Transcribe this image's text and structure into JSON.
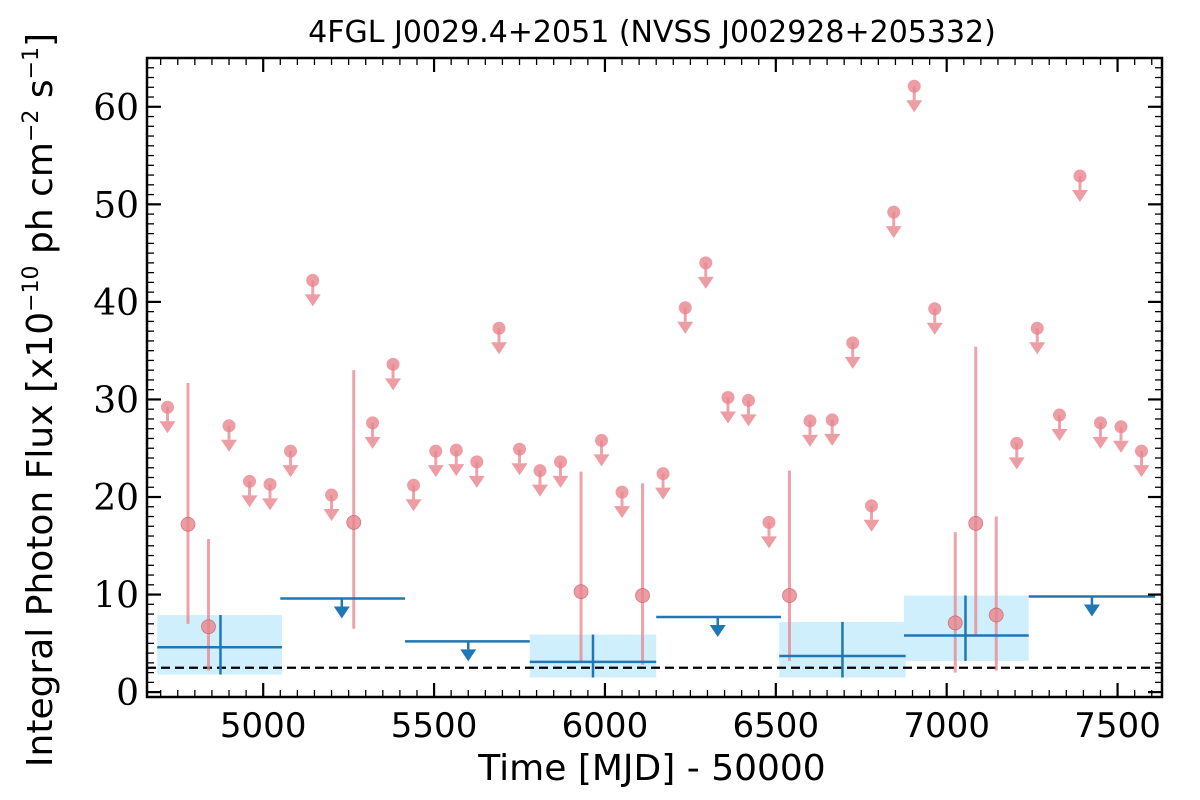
{
  "chart_data": {
    "type": "scatter",
    "title": "4FGL J0029.4+2051 (NVSS J002928+205332)",
    "xlabel": "Time [MJD] - 50000",
    "ylabel_main": "Integral Photon Flux [x10",
    "ylabel_exp1": "−10",
    "ylabel_mid": " ph cm",
    "ylabel_exp2": "−2",
    "ylabel_s": " s",
    "ylabel_exp3": "−1",
    "ylabel_end": "]",
    "xlim": [
      4660,
      7630
    ],
    "ylim": [
      -0.5,
      65
    ],
    "xticks": [
      5000,
      5500,
      6000,
      6500,
      7000,
      7500
    ],
    "yticks": [
      0,
      10,
      20,
      30,
      40,
      50,
      60
    ],
    "reference_line": 2.5,
    "colors": {
      "short": "#e8858d",
      "long": "#1f77b4",
      "band": "#cdeefc"
    },
    "short_detections": [
      {
        "x": 4780,
        "y": 17.2,
        "lo": 7.0,
        "hi": 31.7
      },
      {
        "x": 4840,
        "y": 6.7,
        "lo": 2.2,
        "hi": 15.7
      },
      {
        "x": 5265,
        "y": 17.4,
        "lo": 6.5,
        "hi": 33.0
      },
      {
        "x": 5930,
        "y": 10.3,
        "lo": 3.0,
        "hi": 22.6
      },
      {
        "x": 6110,
        "y": 9.9,
        "lo": 2.8,
        "hi": 21.4
      },
      {
        "x": 6540,
        "y": 9.9,
        "lo": 3.2,
        "hi": 22.7
      },
      {
        "x": 7025,
        "y": 7.1,
        "lo": 2.0,
        "hi": 16.4
      },
      {
        "x": 7085,
        "y": 17.3,
        "lo": 5.8,
        "hi": 35.4
      },
      {
        "x": 7145,
        "y": 7.9,
        "lo": 2.2,
        "hi": 18.0
      }
    ],
    "short_upper_limits": [
      {
        "x": 4720,
        "y": 29.2
      },
      {
        "x": 4900,
        "y": 27.3
      },
      {
        "x": 4960,
        "y": 21.6
      },
      {
        "x": 5020,
        "y": 21.3
      },
      {
        "x": 5080,
        "y": 24.7
      },
      {
        "x": 5145,
        "y": 42.2
      },
      {
        "x": 5200,
        "y": 20.2
      },
      {
        "x": 5320,
        "y": 27.6
      },
      {
        "x": 5380,
        "y": 33.6
      },
      {
        "x": 5440,
        "y": 21.2
      },
      {
        "x": 5505,
        "y": 24.7
      },
      {
        "x": 5565,
        "y": 24.8
      },
      {
        "x": 5625,
        "y": 23.6
      },
      {
        "x": 5690,
        "y": 37.3
      },
      {
        "x": 5750,
        "y": 24.9
      },
      {
        "x": 5810,
        "y": 22.7
      },
      {
        "x": 5870,
        "y": 23.6
      },
      {
        "x": 5990,
        "y": 25.8
      },
      {
        "x": 6050,
        "y": 20.5
      },
      {
        "x": 6170,
        "y": 22.4
      },
      {
        "x": 6235,
        "y": 39.4
      },
      {
        "x": 6295,
        "y": 44.0
      },
      {
        "x": 6360,
        "y": 30.2
      },
      {
        "x": 6420,
        "y": 29.9
      },
      {
        "x": 6480,
        "y": 17.4
      },
      {
        "x": 6600,
        "y": 27.8
      },
      {
        "x": 6665,
        "y": 27.9
      },
      {
        "x": 6725,
        "y": 35.8
      },
      {
        "x": 6780,
        "y": 19.1
      },
      {
        "x": 6845,
        "y": 49.2
      },
      {
        "x": 6905,
        "y": 62.1
      },
      {
        "x": 6965,
        "y": 39.3
      },
      {
        "x": 7205,
        "y": 25.5
      },
      {
        "x": 7265,
        "y": 37.3
      },
      {
        "x": 7330,
        "y": 28.4
      },
      {
        "x": 7390,
        "y": 52.9
      },
      {
        "x": 7450,
        "y": 27.6
      },
      {
        "x": 7510,
        "y": 27.2
      },
      {
        "x": 7570,
        "y": 24.7
      }
    ],
    "long_detections": [
      {
        "x0": 4690,
        "x1": 5055,
        "xc": 4875,
        "y": 4.6,
        "lo": 1.8,
        "hi": 7.9
      },
      {
        "x0": 5780,
        "x1": 6150,
        "xc": 5965,
        "y": 3.1,
        "lo": 1.5,
        "hi": 5.9
      },
      {
        "x0": 6510,
        "x1": 6880,
        "xc": 6695,
        "y": 3.7,
        "lo": 1.5,
        "hi": 7.2
      },
      {
        "x0": 6875,
        "x1": 7240,
        "xc": 7055,
        "y": 5.8,
        "lo": 3.2,
        "hi": 9.9
      }
    ],
    "long_upper_limits": [
      {
        "x0": 5050,
        "x1": 5415,
        "xc": 5230,
        "y": 9.6
      },
      {
        "x0": 5415,
        "x1": 5780,
        "xc": 5600,
        "y": 5.2
      },
      {
        "x0": 6150,
        "x1": 6515,
        "xc": 6330,
        "y": 7.7
      },
      {
        "x0": 7240,
        "x1": 7610,
        "xc": 7425,
        "y": 9.8
      }
    ]
  }
}
